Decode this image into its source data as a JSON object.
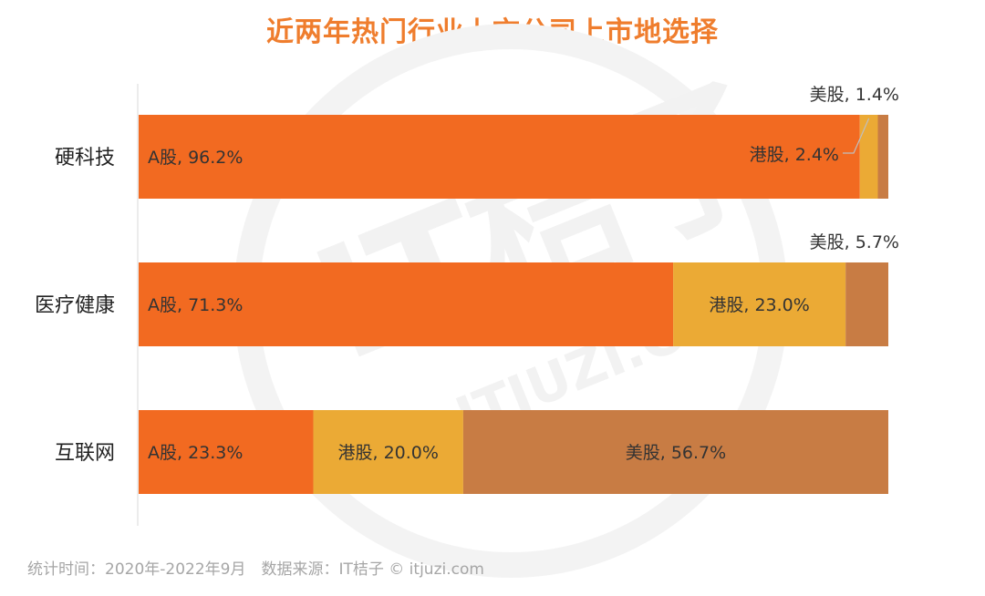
{
  "title": "近两年热门行业上市公司上市地选择",
  "footer": "统计时间：2020年-2022年9月　数据来源：IT桔子 © itjuzi.com",
  "colors": {
    "title": "#ef7d2d",
    "A股": "#f26a21",
    "港股": "#ebaa35",
    "美股": "#c87c44",
    "footer": "#a6a6a6"
  },
  "watermark": {
    "logo_text": "IT桔子",
    "url_text": "ITJUZI.COM"
  },
  "chart_data": {
    "type": "bar",
    "orientation": "horizontal",
    "stacked": true,
    "categories": [
      "硬科技",
      "医疗健康",
      "互联网"
    ],
    "series": [
      {
        "name": "A股",
        "values": [
          96.2,
          71.3,
          23.3
        ],
        "color": "#f26a21"
      },
      {
        "name": "港股",
        "values": [
          2.4,
          23.0,
          20.0
        ],
        "color": "#ebaa35"
      },
      {
        "name": "美股",
        "values": [
          1.4,
          5.7,
          56.7
        ],
        "color": "#c87c44"
      }
    ],
    "data_labels": [
      [
        "A股, 96.2%",
        "港股, 2.4%",
        "美股, 1.4%"
      ],
      [
        "A股, 71.3%",
        "港股, 23.0%",
        "美股, 5.7%"
      ],
      [
        "A股, 23.3%",
        "港股, 20.0%",
        "美股, 56.7%"
      ]
    ],
    "xlim": [
      0,
      100
    ],
    "grid": false,
    "legend": "none"
  }
}
